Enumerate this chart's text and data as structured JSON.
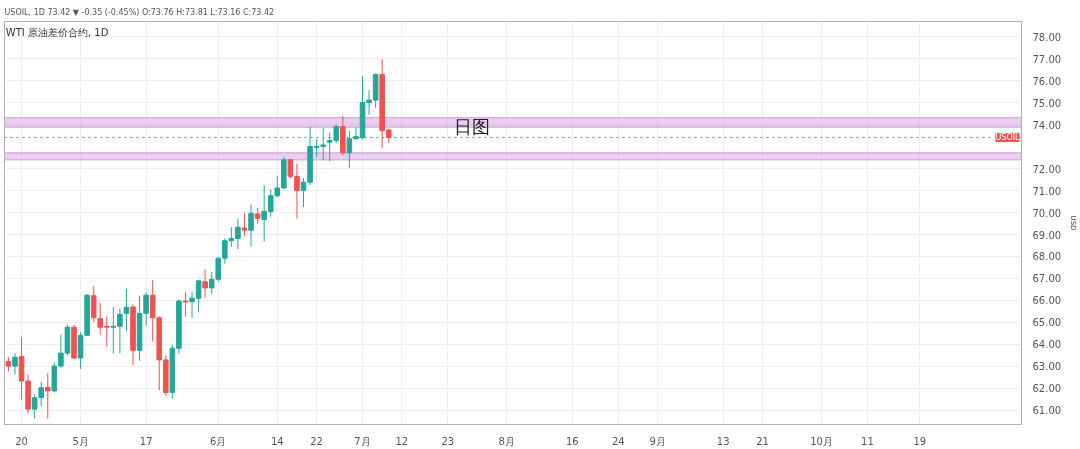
{
  "chart_data": {
    "type": "candlestick",
    "title": "WTI 原油差价合约, 1D",
    "ylabel": "USD",
    "categories": [
      null,
      null,
      "20",
      null,
      null,
      null,
      null,
      null,
      null,
      null,
      null,
      "5月",
      null,
      null,
      null,
      null,
      null,
      null,
      null,
      null,
      null,
      "17",
      null,
      null,
      null,
      null,
      null,
      null,
      null,
      null,
      null,
      null,
      "6月",
      null,
      null,
      null,
      null,
      null,
      null,
      null,
      null,
      "14",
      null,
      null,
      null,
      null,
      null,
      "22",
      null,
      null,
      null,
      null,
      null,
      null,
      "7月",
      null,
      null,
      null,
      null,
      null,
      "12",
      null,
      null,
      null,
      null,
      null,
      null,
      "23",
      null,
      null,
      null,
      null,
      null,
      null,
      null,
      null,
      "8月",
      null,
      null,
      null,
      null,
      null,
      null,
      null,
      null,
      null,
      "16",
      null,
      null,
      null,
      null,
      null,
      null,
      "24",
      null,
      null,
      null,
      null,
      null,
      "9月",
      null,
      null,
      null,
      null,
      null,
      null,
      null,
      null,
      null,
      "13",
      null,
      null,
      null,
      null,
      null,
      "21",
      null,
      null,
      null,
      null,
      null,
      null,
      null,
      null,
      "10月",
      null,
      null,
      null,
      null,
      null,
      null,
      "11",
      null,
      null,
      null,
      null,
      null,
      null,
      null,
      "19",
      null,
      null,
      null,
      null,
      null,
      null,
      null,
      null,
      null,
      null,
      null,
      null,
      null,
      null,
      null
    ],
    "ohlc": [
      [
        63.22,
        63.41,
        62.77,
        63.01
      ],
      [
        63.01,
        63.59,
        62.63,
        63.41
      ],
      [
        63.45,
        64.31,
        61.49,
        62.33
      ],
      [
        62.33,
        62.63,
        60.86,
        61.05
      ],
      [
        61.05,
        61.73,
        60.62,
        61.57
      ],
      [
        61.57,
        62.29,
        61.19,
        62.02
      ],
      [
        62.04,
        62.69,
        60.62,
        61.88
      ],
      [
        61.88,
        63.17,
        61.81,
        63.01
      ],
      [
        63.01,
        64.45,
        62.93,
        63.6
      ],
      [
        63.6,
        64.89,
        63.49,
        64.78
      ],
      [
        64.78,
        64.89,
        63.34,
        63.38
      ],
      [
        63.38,
        64.54,
        62.88,
        64.41
      ],
      [
        64.41,
        66.29,
        64.37,
        66.24
      ],
      [
        66.21,
        66.65,
        65.02,
        65.21
      ],
      [
        65.17,
        65.89,
        64.45,
        64.78
      ],
      [
        64.82,
        65.27,
        63.89,
        64.78
      ],
      [
        64.78,
        65.69,
        63.6,
        64.82
      ],
      [
        64.82,
        65.65,
        63.6,
        65.37
      ],
      [
        65.41,
        66.53,
        64.61,
        65.69
      ],
      [
        65.7,
        65.81,
        63.06,
        63.73
      ],
      [
        63.73,
        66.21,
        63.25,
        65.41
      ],
      [
        65.41,
        66.37,
        64.85,
        66.24
      ],
      [
        66.24,
        66.93,
        64.13,
        65.21
      ],
      [
        65.21,
        65.27,
        61.9,
        63.29
      ],
      [
        63.29,
        63.49,
        61.66,
        61.81
      ],
      [
        61.81,
        63.97,
        61.53,
        63.82
      ],
      [
        63.82,
        66.05,
        63.58,
        65.97
      ],
      [
        65.97,
        66.37,
        65.26,
        65.93
      ],
      [
        65.94,
        66.37,
        65.21,
        66.1
      ],
      [
        66.1,
        66.93,
        65.46,
        66.89
      ],
      [
        66.85,
        67.41,
        66.13,
        66.57
      ],
      [
        66.57,
        67.29,
        66.29,
        66.96
      ],
      [
        66.96,
        67.97,
        66.85,
        67.92
      ],
      [
        67.92,
        68.82,
        67.67,
        68.72
      ],
      [
        68.72,
        69.33,
        68.45,
        68.82
      ],
      [
        68.82,
        69.73,
        68.34,
        69.33
      ],
      [
        69.3,
        69.97,
        68.93,
        69.2
      ],
      [
        69.2,
        70.37,
        68.45,
        69.97
      ],
      [
        69.94,
        70.21,
        69.49,
        69.73
      ],
      [
        69.68,
        71.25,
        68.69,
        70.05
      ],
      [
        70.05,
        71.06,
        69.81,
        70.77
      ],
      [
        70.77,
        71.65,
        70.69,
        71.12
      ],
      [
        71.12,
        72.53,
        71.09,
        72.4
      ],
      [
        72.4,
        72.45,
        71.57,
        71.65
      ],
      [
        71.65,
        72.21,
        69.73,
        71.01
      ],
      [
        71.01,
        71.57,
        70.26,
        71.38
      ],
      [
        71.38,
        73.89,
        71.25,
        73.01
      ],
      [
        72.96,
        73.36,
        72.53,
        73.01
      ],
      [
        73.01,
        73.86,
        72.37,
        73.08
      ],
      [
        73.2,
        73.65,
        72.34,
        73.28
      ],
      [
        73.28,
        74.0,
        73.17,
        73.92
      ],
      [
        73.92,
        74.4,
        72.61,
        72.72
      ],
      [
        72.72,
        73.73,
        72.02,
        73.36
      ],
      [
        73.36,
        73.89,
        73.33,
        73.46
      ],
      [
        73.41,
        76.21,
        73.33,
        75.01
      ],
      [
        75.01,
        75.57,
        74.45,
        75.12
      ],
      [
        75.12,
        76.34,
        74.77,
        76.29
      ],
      [
        76.29,
        76.98,
        72.93,
        73.73
      ],
      [
        73.76,
        73.81,
        73.16,
        73.42
      ],
      null,
      null,
      null,
      null,
      null,
      null,
      null,
      null,
      null,
      null,
      null,
      null,
      null,
      null,
      null,
      null,
      null,
      null,
      null,
      null,
      null,
      null,
      null,
      null,
      null,
      null,
      null,
      null,
      null,
      null,
      null,
      null,
      null,
      null,
      null,
      null,
      null,
      null,
      null,
      null,
      null,
      null,
      null,
      null,
      null,
      null,
      null,
      null,
      null,
      null,
      null,
      null,
      null,
      null,
      null,
      null,
      null,
      null,
      null,
      null,
      null,
      null,
      null,
      null,
      null,
      null,
      null,
      null,
      null,
      null,
      null,
      null,
      null,
      null,
      null,
      null,
      null,
      null,
      null,
      null,
      null,
      null,
      null,
      null,
      null,
      null,
      null,
      null,
      null,
      null,
      null,
      null,
      null,
      null,
      null,
      null
    ],
    "colors": [
      "#ef5350",
      "#26a69a",
      "#ef5350",
      "#ef5350",
      "#26a69a",
      "#26a69a",
      "#ef5350",
      "#26a69a",
      "#26a69a",
      "#26a69a",
      "#ef5350",
      "#26a69a",
      "#26a69a",
      "#ef5350",
      "#ef5350",
      "#ef5350",
      "#26a69a",
      "#26a69a",
      "#26a69a",
      "#ef5350",
      "#26a69a",
      "#26a69a",
      "#ef5350",
      "#ef5350",
      "#ef5350",
      "#26a69a",
      "#26a69a",
      "#ef5350",
      "#26a69a",
      "#26a69a",
      "#ef5350",
      "#26a69a",
      "#26a69a",
      "#26a69a",
      "#26a69a",
      "#26a69a",
      "#ef5350",
      "#26a69a",
      "#ef5350",
      "#26a69a",
      "#26a69a",
      "#26a69a",
      "#26a69a",
      "#ef5350",
      "#ef5350",
      "#26a69a",
      "#26a69a",
      "#26a69a",
      "#26a69a",
      "#26a69a",
      "#26a69a",
      "#ef5350",
      "#26a69a",
      "#26a69a",
      "#26a69a",
      "#26a69a",
      "#26a69a",
      "#ef5350",
      "#ef5350",
      null,
      null,
      null,
      null,
      null,
      null,
      null,
      null,
      null,
      null,
      null,
      null,
      null,
      null,
      null,
      null,
      null,
      null,
      null,
      null,
      null,
      null,
      null,
      null,
      null,
      null,
      null,
      null,
      null,
      null,
      null,
      null,
      null,
      null,
      null,
      null,
      null,
      null,
      null,
      null,
      null,
      null,
      null,
      null,
      null,
      null,
      null,
      null,
      null,
      null,
      null,
      null,
      null,
      null,
      null,
      null,
      null,
      null,
      null,
      null,
      null,
      null,
      null,
      null,
      null,
      null,
      null,
      null,
      null,
      null,
      null,
      null,
      null,
      null,
      null,
      null,
      null,
      null,
      null,
      null,
      null,
      null,
      null,
      null,
      null,
      null,
      null,
      null,
      null,
      null,
      null,
      null,
      null,
      null,
      null,
      null
    ],
    "ylim": [
      60.35,
      78.7
    ],
    "yticks": [
      {
        "value": 61,
        "label": "61.00"
      },
      {
        "value": 62,
        "label": "62.00"
      },
      {
        "value": 63,
        "label": "63.00"
      },
      {
        "value": 64,
        "label": "64.00"
      },
      {
        "value": 65,
        "label": "65.00"
      },
      {
        "value": 66,
        "label": "66.00"
      },
      {
        "value": 67,
        "label": "67.00"
      },
      {
        "value": 68,
        "label": "68.00"
      },
      {
        "value": 69,
        "label": "69.00"
      },
      {
        "value": 70,
        "label": "70.00"
      },
      {
        "value": 71,
        "label": "71.00"
      },
      {
        "value": 72,
        "label": "72.00"
      },
      {
        "value": 74,
        "label": "74.00"
      },
      {
        "value": 75,
        "label": "75.00"
      },
      {
        "value": 76,
        "label": "76.00"
      },
      {
        "value": 77,
        "label": "77.00"
      },
      {
        "value": 78,
        "label": "78.00"
      }
    ],
    "grid": true,
    "ref_lines": [
      {
        "axis": "y",
        "value": 73.42,
        "label": "USOIL",
        "color": "#ef5350",
        "line_style": "dotted"
      }
    ],
    "bands": [
      {
        "axis": "y",
        "from": 73.89,
        "to": 74.32,
        "color": "#ce93d8"
      },
      {
        "axis": "y",
        "from": 72.4,
        "to": 72.72,
        "color": "#ce93d8"
      }
    ],
    "annotations": [
      "USOIL, 1D 73.42 ▼ -0.35 (-0.45%) O:73.76 H:73.81 L:73.16 C:73.42",
      "日图"
    ]
  }
}
